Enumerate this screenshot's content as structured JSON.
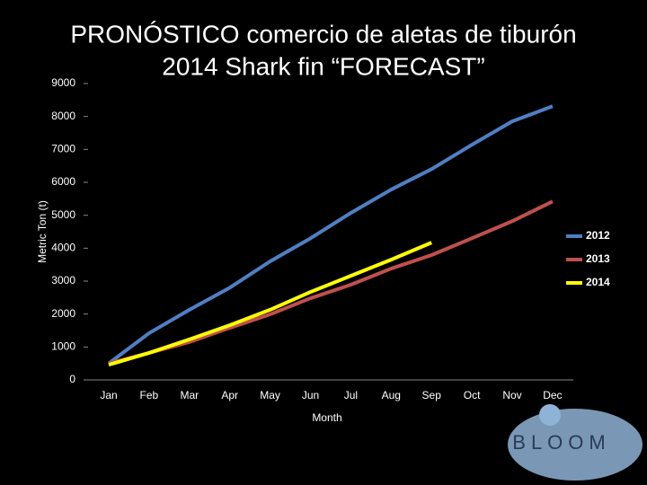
{
  "chart_data": {
    "type": "line",
    "title": [
      "PRONÓSTICO comercio de aletas de tiburón",
      "2014 Shark fin “FORECAST”"
    ],
    "x_label": "Month",
    "y_label": "Metric Ton (t)",
    "categories": [
      "Jan",
      "Feb",
      "Mar",
      "Apr",
      "May",
      "Jun",
      "Jul",
      "Aug",
      "Sep",
      "Oct",
      "Nov",
      "Dec"
    ],
    "series": [
      {
        "name": "2012",
        "color": "#4f7fc4",
        "values": [
          500,
          1420,
          2130,
          2800,
          3600,
          4300,
          5070,
          5780,
          6400,
          7140,
          7850,
          8310
        ]
      },
      {
        "name": "2013",
        "color": "#c0504d",
        "values": [
          500,
          820,
          1150,
          1580,
          1990,
          2480,
          2890,
          3380,
          3790,
          4300,
          4820,
          5420
        ]
      },
      {
        "name": "2014",
        "color": "#ffff00",
        "values": [
          460,
          820,
          1230,
          1660,
          2130,
          2670,
          3160,
          3650,
          4170,
          null,
          null,
          null
        ]
      }
    ],
    "ylim": [
      0,
      9000
    ],
    "yticks": [
      0,
      1000,
      2000,
      3000,
      4000,
      5000,
      6000,
      7000,
      8000,
      9000
    ],
    "grid": false,
    "legend": "right",
    "logo": "BLOOM"
  }
}
